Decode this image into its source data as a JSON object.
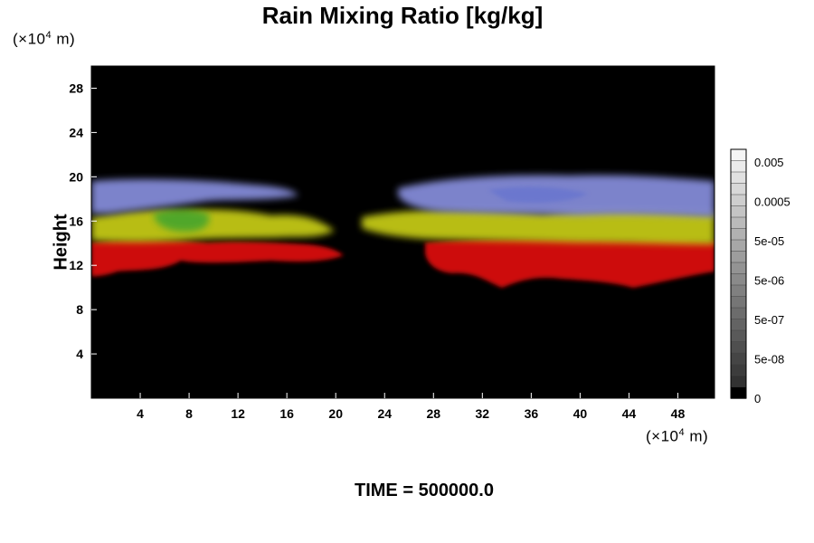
{
  "chart_data": {
    "type": "heatmap",
    "title": "Rain Mixing Ratio [kg/kg]",
    "ylabel": "Height",
    "y_unit": {
      "prefix": "(×10",
      "exp": "4",
      "suffix": " m)"
    },
    "x_unit": {
      "prefix": "(×10",
      "exp": "4",
      "suffix": " m)"
    },
    "xlim": [
      0,
      51
    ],
    "ylim": [
      0,
      30
    ],
    "x_ticks": [
      4,
      8,
      12,
      16,
      20,
      24,
      28,
      32,
      36,
      40,
      44,
      48
    ],
    "y_ticks": [
      4,
      8,
      12,
      16,
      20,
      24,
      28
    ],
    "background_color": "#000000",
    "colorbar": {
      "labels": [
        "0.005",
        "0.0005",
        "5e-05",
        "5e-06",
        "5e-07",
        "5e-08",
        "0"
      ],
      "levels": 22
    },
    "layers": [
      {
        "color": "#8890e0",
        "ymin": 17.5,
        "ymax": 20
      },
      {
        "color": "#c8d018",
        "ymin": 14,
        "ymax": 17.5
      },
      {
        "color": "#dd1010",
        "ymin": 10,
        "ymax": 14
      }
    ],
    "time_label": "TIME = 500000.0"
  }
}
